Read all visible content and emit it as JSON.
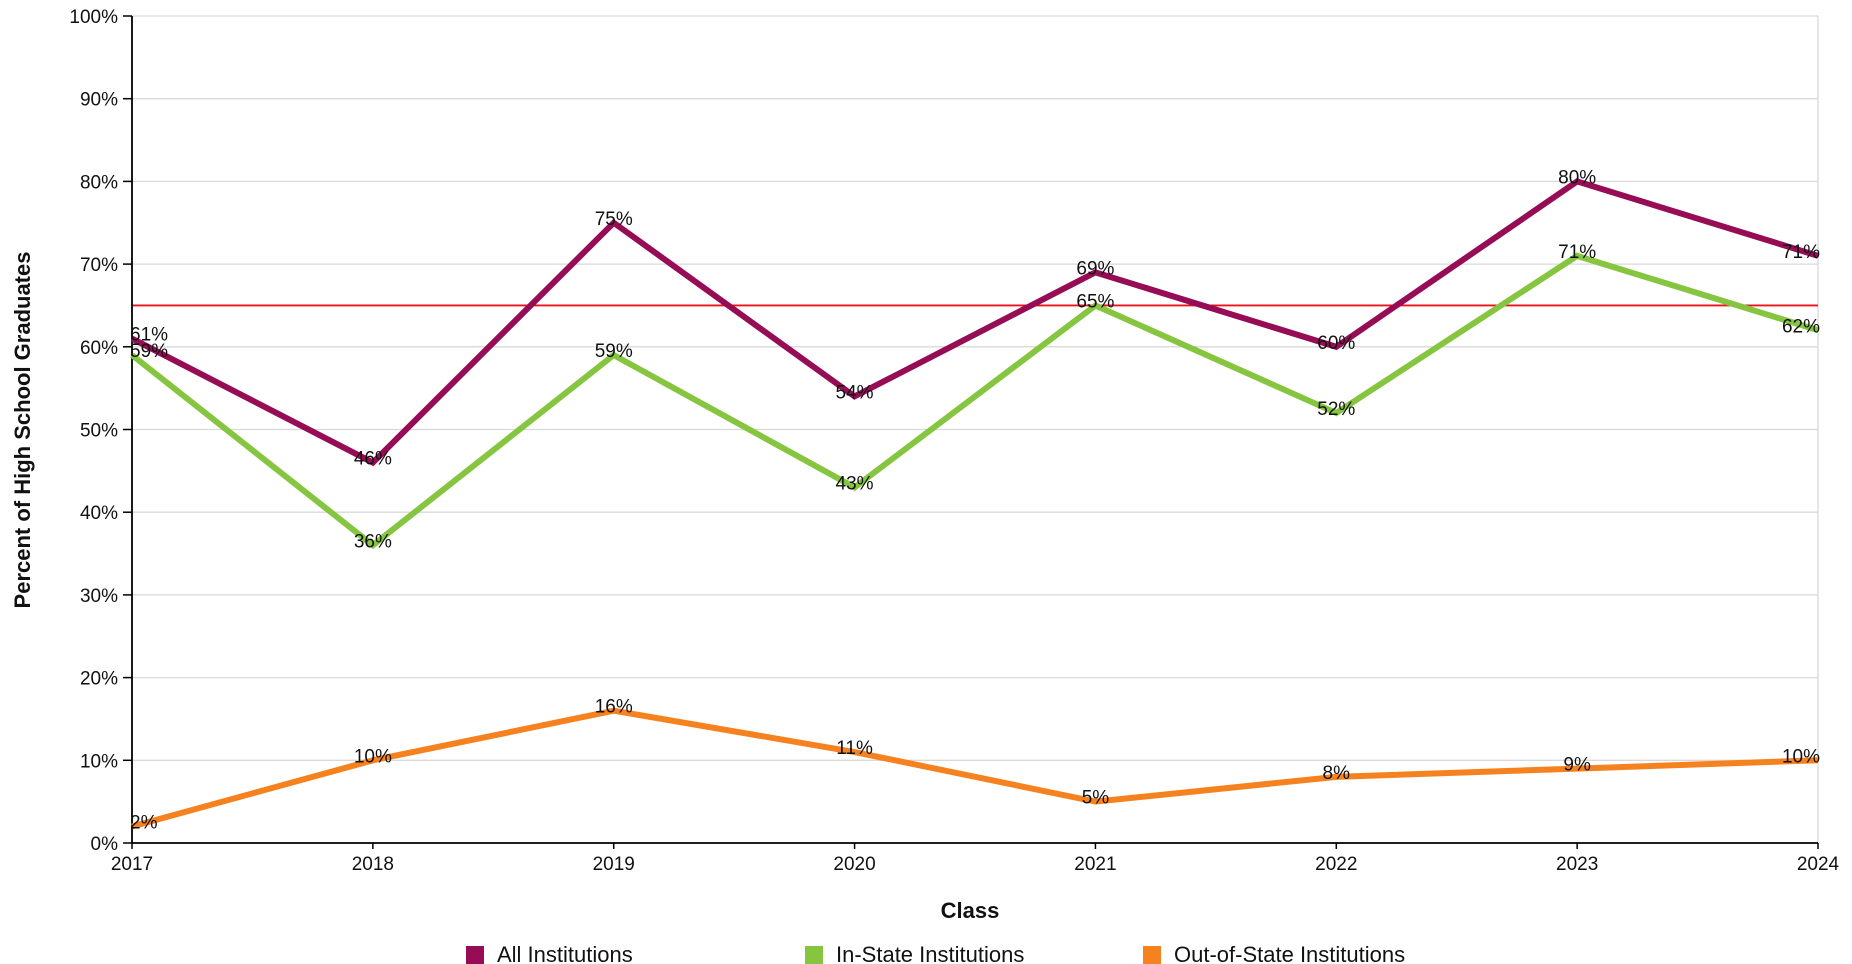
{
  "chart_data": {
    "type": "line",
    "title": "",
    "xlabel": "Class",
    "ylabel": "Percent of High School Graduates",
    "categories": [
      "2017",
      "2018",
      "2019",
      "2020",
      "2021",
      "2022",
      "2023",
      "2024"
    ],
    "ylim": [
      0,
      100
    ],
    "yticks": [
      "0%",
      "10%",
      "20%",
      "30%",
      "40%",
      "50%",
      "60%",
      "70%",
      "80%",
      "90%",
      "100%"
    ],
    "grid": true,
    "legend_position": "bottom",
    "reference_line": {
      "value": 65,
      "color": "#e8141b"
    },
    "series": [
      {
        "name": "All Institutions",
        "color": "#960c55",
        "values": [
          61,
          46,
          75,
          54,
          69,
          60,
          80,
          71
        ],
        "labels": [
          "61%",
          "46%",
          "75%",
          "54%",
          "69%",
          "60%",
          "80%",
          "71%"
        ]
      },
      {
        "name": "In-State Institutions",
        "color": "#86c540",
        "values": [
          59,
          36,
          59,
          43,
          65,
          52,
          71,
          62
        ],
        "labels": [
          "59%",
          "36%",
          "59%",
          "43%",
          "65%",
          "52%",
          "71%",
          "62%"
        ]
      },
      {
        "name": "Out-of-State Institutions",
        "color": "#f5821f",
        "values": [
          2,
          10,
          16,
          11,
          5,
          8,
          9,
          10
        ],
        "labels": [
          "2%",
          "10%",
          "16%",
          "11%",
          "5%",
          "8%",
          "9%",
          "10%"
        ]
      }
    ]
  }
}
